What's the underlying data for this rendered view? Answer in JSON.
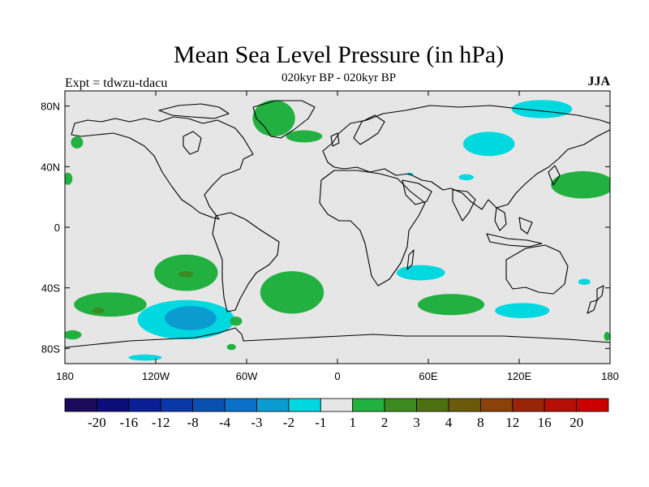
{
  "title": "Mean Sea Level Pressure (in hPa)",
  "subtitle": "020kyr BP - 020kyr BP",
  "experiment": "Expt = tdwzu-tdacu",
  "season": "JJA",
  "map": {
    "projection": "cylindrical-equidistant",
    "lon_range": [
      -180,
      180
    ],
    "lat_range": [
      -90,
      90
    ],
    "x_ticks": [
      {
        "lon": -180,
        "label": "180"
      },
      {
        "lon": -120,
        "label": "120W"
      },
      {
        "lon": -60,
        "label": "60W"
      },
      {
        "lon": 0,
        "label": "0"
      },
      {
        "lon": 60,
        "label": "60E"
      },
      {
        "lon": 120,
        "label": "120E"
      },
      {
        "lon": 180,
        "label": "180"
      }
    ],
    "y_ticks": [
      {
        "lat": 80,
        "label": "80N"
      },
      {
        "lat": 40,
        "label": "40N"
      },
      {
        "lat": 0,
        "label": "0"
      },
      {
        "lat": -40,
        "label": "40S"
      },
      {
        "lat": -80,
        "label": "80S"
      }
    ],
    "background_color": "#e6e6e6"
  },
  "colorbar": {
    "labels": [
      "-20",
      "-16",
      "-12",
      "-8",
      "-4",
      "-3",
      "-2",
      "-1",
      "1",
      "2",
      "3",
      "4",
      "8",
      "12",
      "16",
      "20"
    ],
    "colors": [
      "#1a0a5c",
      "#0d0d7a",
      "#0a1f96",
      "#0a38a8",
      "#0a50b0",
      "#0a70c8",
      "#0a9cd0",
      "#00d8e0",
      "#e6e6e6",
      "#22b040",
      "#3d8a20",
      "#4f7010",
      "#6a5a0a",
      "#8a420a",
      "#9a2408",
      "#b41008",
      "#cc0000"
    ]
  },
  "chart_data": {
    "type": "filled-contour-map",
    "field": "Mean Sea Level Pressure difference (hPa)",
    "anomaly_regions": [
      {
        "name": "greenland-positive",
        "class": "1-2",
        "lon": -42,
        "lat": 72,
        "rlon": 14,
        "rlat": 12
      },
      {
        "name": "iceland-positive",
        "class": "1-2",
        "lon": -22,
        "lat": 60,
        "rlon": 12,
        "rlat": 4
      },
      {
        "name": "east-pacific-positive",
        "class": "1-2",
        "lon": -172,
        "lat": 56,
        "rlon": 4,
        "rlat": 4
      },
      {
        "name": "west-atlantic-edge-positive",
        "class": "1-2",
        "lon": -178,
        "lat": 32,
        "rlon": 3,
        "rlat": 4
      },
      {
        "name": "arctic-siberia-negative",
        "class": "-2--1",
        "lon": 135,
        "lat": 78,
        "rlon": 20,
        "rlat": 6
      },
      {
        "name": "central-asia-negative",
        "class": "-2--1",
        "lon": 100,
        "lat": 55,
        "rlon": 17,
        "rlat": 8
      },
      {
        "name": "caspian-negative",
        "class": "-2--1",
        "lon": 85,
        "lat": 33,
        "rlon": 5,
        "rlat": 2
      },
      {
        "name": "north-africa-negative",
        "class": "-2--1",
        "lon": 48,
        "lat": 35,
        "rlon": 2,
        "rlat": 1
      },
      {
        "name": "northwest-pacific-positive",
        "class": "1-2",
        "lon": 162,
        "lat": 28,
        "rlon": 21,
        "rlat": 9
      },
      {
        "name": "south-pacific-positive",
        "class": "1-2",
        "lon": -100,
        "lat": -30,
        "rlon": 21,
        "rlat": 12
      },
      {
        "name": "south-pacific-core",
        "class": "2-3",
        "lon": -100,
        "lat": -31,
        "rlon": 5,
        "rlat": 2
      },
      {
        "name": "south-atlantic-positive",
        "class": "1-2",
        "lon": -30,
        "lat": -43,
        "rlon": 21,
        "rlat": 14
      },
      {
        "name": "south-indian-negative",
        "class": "-2--1",
        "lon": 55,
        "lat": -30,
        "rlon": 16,
        "rlat": 5
      },
      {
        "name": "southern-ocean-positive-east",
        "class": "1-2",
        "lon": 75,
        "lat": -51,
        "rlon": 22,
        "rlat": 7
      },
      {
        "name": "southern-ocean-negative-east",
        "class": "-2--1",
        "lon": 122,
        "lat": -55,
        "rlon": 18,
        "rlat": 5
      },
      {
        "name": "tasman-negative",
        "class": "-2--1",
        "lon": 163,
        "lat": -36,
        "rlon": 4,
        "rlat": 2
      },
      {
        "name": "south-pacific-west-positive",
        "class": "1-2",
        "lon": -150,
        "lat": -51,
        "rlon": 24,
        "rlat": 8
      },
      {
        "name": "south-pacific-west-core",
        "class": "2-3",
        "lon": -158,
        "lat": -55,
        "rlon": 4,
        "rlat": 2
      },
      {
        "name": "amundsen-negative",
        "class": "-2--1",
        "lon": -100,
        "lat": -61,
        "rlon": 32,
        "rlat": 13
      },
      {
        "name": "amundsen-core",
        "class": "-3--2",
        "lon": -97,
        "lat": -60,
        "rlon": 17,
        "rlat": 8
      },
      {
        "name": "drake-positive",
        "class": "1-2",
        "lon": -67,
        "lat": -62,
        "rlon": 4,
        "rlat": 3
      },
      {
        "name": "ross-sea-negative",
        "class": "-2--1",
        "lon": -127,
        "lat": -86,
        "rlon": 11,
        "rlat": 2
      },
      {
        "name": "southwest-pacific-positive",
        "class": "1-2",
        "lon": -175,
        "lat": -71,
        "rlon": 6,
        "rlat": 3
      },
      {
        "name": "bellingshausen-positive",
        "class": "1-2",
        "lon": -70,
        "lat": -79,
        "rlon": 3,
        "rlat": 2
      },
      {
        "name": "pacific-dateline-positive",
        "class": "1-2",
        "lon": 178,
        "lat": -72,
        "rlon": 2,
        "rlat": 3
      }
    ]
  }
}
